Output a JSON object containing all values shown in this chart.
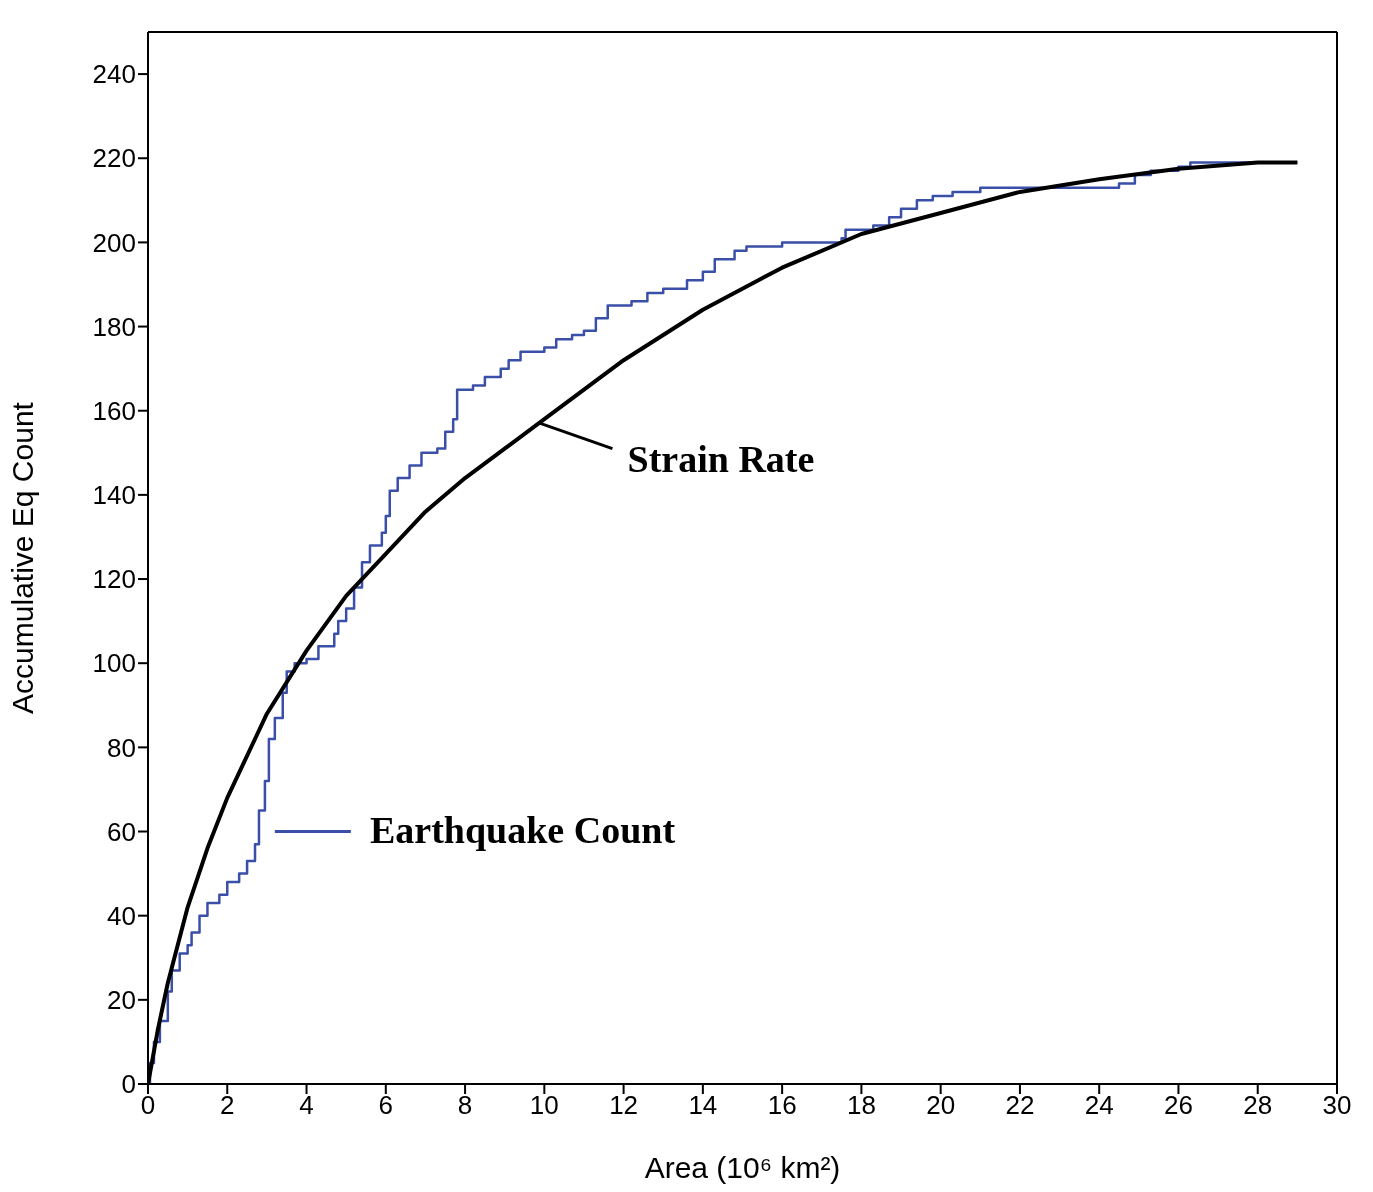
{
  "chart_data": {
    "type": "line",
    "xlabel": "Area (10⁶ km²)",
    "ylabel": "Accumulative Eq Count",
    "xlim": [
      0,
      30
    ],
    "ylim": [
      0,
      250
    ],
    "xticks": [
      0,
      2,
      4,
      6,
      8,
      10,
      12,
      14,
      16,
      18,
      20,
      22,
      24,
      26,
      28,
      30
    ],
    "yticks": [
      0,
      20,
      40,
      60,
      80,
      100,
      120,
      140,
      160,
      180,
      200,
      220,
      240
    ],
    "marker": "none",
    "legend": "center left",
    "line_style": "solid",
    "series": [
      {
        "name": "Earthquake Count",
        "color": "#3a4fa8",
        "type": "step",
        "x": [
          0,
          0.05,
          0.15,
          0.3,
          0.5,
          0.6,
          0.8,
          1.0,
          1.1,
          1.3,
          1.5,
          1.8,
          2.0,
          2.3,
          2.5,
          2.7,
          2.8,
          2.95,
          3.05,
          3.2,
          3.4,
          3.5,
          3.7,
          4.0,
          4.3,
          4.7,
          4.8,
          5.0,
          5.2,
          5.4,
          5.6,
          5.9,
          6.0,
          6.1,
          6.3,
          6.6,
          6.9,
          7.3,
          7.5,
          7.7,
          7.8,
          8.2,
          8.5,
          8.9,
          9.1,
          9.4,
          10.0,
          10.3,
          10.7,
          11.0,
          11.3,
          11.6,
          12.2,
          12.6,
          13.0,
          13.6,
          14.0,
          14.3,
          14.8,
          15.1,
          16.0,
          17.5,
          17.6,
          18.3,
          18.7,
          19.0,
          19.4,
          19.8,
          20.3,
          21.0,
          23.0,
          24.5,
          24.9,
          25.3,
          26.0,
          26.3,
          29.0
        ],
        "values": [
          0,
          5,
          10,
          15,
          22,
          27,
          31,
          33,
          36,
          40,
          43,
          45,
          48,
          50,
          53,
          57,
          65,
          72,
          82,
          87,
          93,
          98,
          100,
          101,
          104,
          107,
          110,
          113,
          118,
          124,
          128,
          131,
          135,
          141,
          144,
          147,
          150,
          151,
          155,
          158,
          165,
          166,
          168,
          170,
          172,
          174,
          175,
          177,
          178,
          179,
          182,
          185,
          186,
          188,
          189,
          191,
          193,
          196,
          198,
          199,
          200,
          201,
          203,
          204,
          206,
          208,
          210,
          211,
          212,
          213,
          213,
          214,
          216,
          217,
          218,
          219,
          219
        ]
      },
      {
        "name": "Strain Rate",
        "color": "#000000",
        "type": "line",
        "x": [
          0,
          0.25,
          0.5,
          1,
          1.5,
          2,
          3,
          4,
          5,
          6,
          7,
          8,
          9,
          10,
          12,
          14,
          16,
          18,
          20,
          22,
          24,
          26,
          28,
          29
        ],
        "values": [
          0,
          13,
          24,
          42,
          56,
          68,
          88,
          103,
          116,
          126,
          136,
          144,
          151,
          158,
          172,
          184,
          194,
          202,
          207,
          212,
          215,
          217.5,
          219,
          219
        ]
      }
    ]
  }
}
